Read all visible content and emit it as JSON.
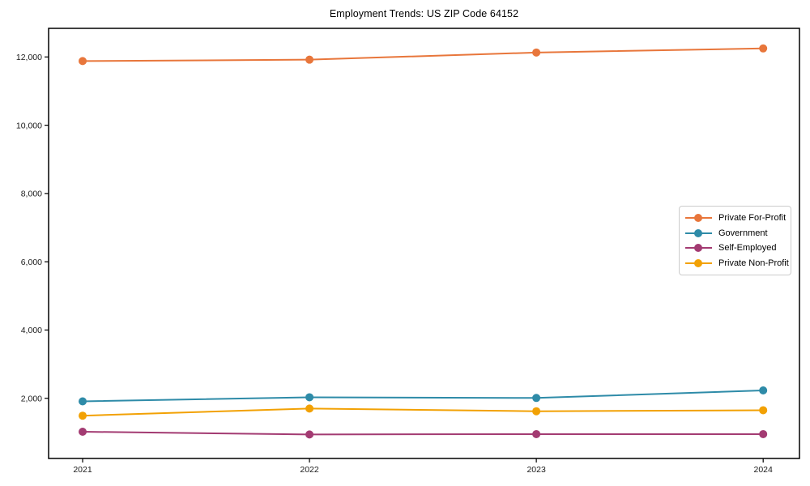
{
  "chart_data": {
    "type": "line",
    "title": "Employment Trends: US ZIP Code 64152",
    "xlabel": "",
    "ylabel": "",
    "x": [
      2021,
      2022,
      2023,
      2024
    ],
    "x_tick_labels": [
      "2021",
      "2022",
      "2023",
      "2024"
    ],
    "y_tick_values": [
      2000,
      4000,
      6000,
      8000,
      10000,
      12000
    ],
    "y_tick_labels": [
      "2,000",
      "4,000",
      "6,000",
      "8,000",
      "10,000",
      "12,000"
    ],
    "series": [
      {
        "name": "Private For-Profit",
        "color": "#E8763B",
        "values": [
          11880,
          11920,
          12130,
          12250
        ]
      },
      {
        "name": "Government",
        "color": "#2E8BA8",
        "values": [
          1910,
          2030,
          2010,
          2230
        ]
      },
      {
        "name": "Self-Employed",
        "color": "#A33B72",
        "values": [
          1020,
          940,
          950,
          950
        ]
      },
      {
        "name": "Private Non-Profit",
        "color": "#F2A104",
        "values": [
          1490,
          1700,
          1620,
          1650
        ]
      }
    ],
    "xlim": [
      2020.85,
      2024.16
    ],
    "ylim": [
      237,
      12838
    ],
    "grid": false,
    "legend_position": "center-right",
    "marker": "circle",
    "axis_color": "#000000",
    "tick_label_color": "#1a1a1a"
  }
}
